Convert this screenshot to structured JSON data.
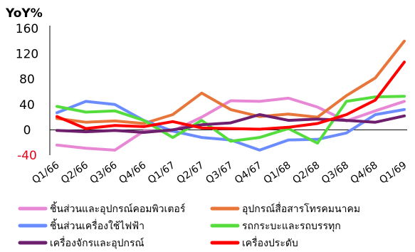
{
  "chart_data": {
    "type": "line",
    "title": "",
    "ylabel": "YoY%",
    "xlabel": "",
    "ylim": [
      -40,
      160
    ],
    "yticks": [
      160,
      120,
      80,
      40,
      0,
      -40
    ],
    "grid": false,
    "legend_position": "bottom",
    "categories": [
      "Q1/66",
      "Q2/66",
      "Q3/66",
      "Q4/66",
      "Q1/67",
      "Q2/67",
      "Q3/67",
      "Q4/67",
      "Q1/68",
      "Q2/68",
      "Q3/68",
      "Q4/68",
      "Q1/69"
    ],
    "series": [
      {
        "name": "ชิ้นส่วนและอุปกรณ์คอมพิวเตอร์",
        "color": "#e887d4",
        "values": [
          -24,
          -29,
          -32,
          -2,
          -2,
          20,
          46,
          45,
          50,
          36,
          14,
          30,
          45
        ]
      },
      {
        "name": "อุปกรณ์สื่อสารโทรคมนาคม",
        "color": "#e8763a",
        "values": [
          18,
          12,
          14,
          10,
          24,
          58,
          32,
          21,
          25,
          20,
          54,
          82,
          140
        ]
      },
      {
        "name": "ชิ้นส่วนเครื่องใช้ไฟฟ้า",
        "color": "#6b8cff",
        "values": [
          27,
          45,
          40,
          15,
          -2,
          -12,
          -16,
          -32,
          -16,
          -15,
          -5,
          24,
          32
        ]
      },
      {
        "name": "รถกระบะและรถบรรทุก",
        "color": "#55dd3e",
        "values": [
          37,
          28,
          30,
          15,
          -12,
          15,
          -18,
          -12,
          2,
          -21,
          45,
          52,
          53
        ]
      },
      {
        "name": "เครื่องจักรและอุปกรณ์",
        "color": "#6e1f6e",
        "values": [
          -1,
          -3,
          -1,
          -4,
          0,
          8,
          11,
          24,
          15,
          17,
          15,
          12,
          22
        ]
      },
      {
        "name": "เครื่องประดับ",
        "color": "#ff0000",
        "values": [
          21,
          2,
          7,
          5,
          13,
          3,
          2,
          1,
          4,
          10,
          24,
          47,
          107
        ]
      }
    ]
  }
}
